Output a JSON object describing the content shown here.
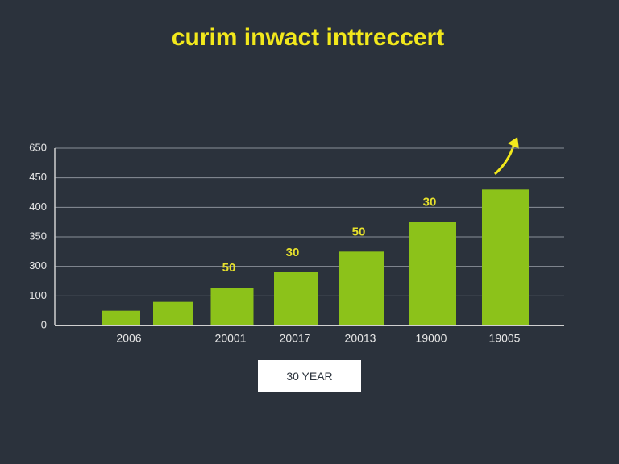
{
  "chart_data": {
    "type": "bar",
    "title": "curim inwact inttreccert",
    "categories": [
      "2006",
      null,
      "20001",
      "20017",
      "20013",
      "19000",
      "19005"
    ],
    "values": [
      50,
      80,
      155,
      260,
      325,
      375,
      430
    ],
    "color": "#8cc21a",
    "ylim": [
      0,
      650
    ],
    "yticks": [
      0,
      100,
      300,
      350,
      400,
      450,
      650
    ],
    "grid": true,
    "annotations": [
      {
        "text": "50",
        "x": "20001"
      },
      {
        "text": "30",
        "x": "20017"
      },
      {
        "text": "50",
        "x": "20013"
      },
      {
        "text": "30",
        "x": "19000"
      }
    ]
  },
  "button": "30 YEAR"
}
